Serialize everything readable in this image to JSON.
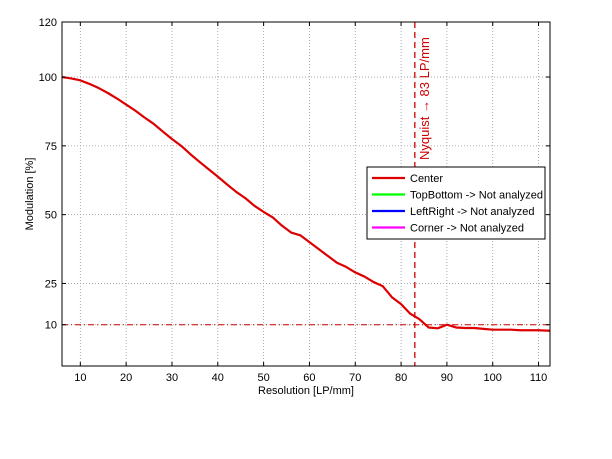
{
  "chart_data": {
    "type": "line",
    "xlabel": "Resolution [LP/mm]",
    "ylabel": "Modulation [%]",
    "xlim": [
      6,
      112.5
    ],
    "ylim": [
      -5,
      120
    ],
    "xticks": [
      10,
      20,
      30,
      40,
      50,
      60,
      70,
      80,
      90,
      100,
      110
    ],
    "yticks": [
      10,
      25,
      50,
      75,
      100,
      120
    ],
    "grid": true,
    "legend_position": "right-middle",
    "reference_lines": [
      {
        "orientation": "vertical",
        "x": 83,
        "color": "#cc0000",
        "style": "dashed",
        "label": "Nyquist → 83 LP/mm"
      },
      {
        "orientation": "horizontal",
        "y": 10,
        "color": "#cc0000",
        "style": "dash-dot"
      }
    ],
    "series": [
      {
        "name": "Center",
        "color": "#dd0000",
        "x": [
          6,
          8,
          10,
          12,
          14,
          16,
          18,
          20,
          22,
          24,
          26,
          28,
          30,
          32,
          34,
          36,
          38,
          40,
          42,
          44,
          46,
          48,
          50,
          52,
          54,
          56,
          58,
          60,
          62,
          64,
          66,
          68,
          70,
          72,
          74,
          76,
          78,
          80,
          82,
          84,
          86,
          88,
          90,
          92,
          94,
          96,
          98,
          100,
          102,
          104,
          106,
          108,
          110,
          112.5
        ],
        "y": [
          100,
          99.5,
          98.8,
          97.5,
          96,
          94.2,
          92.2,
          90,
          87.8,
          85.3,
          83,
          80.2,
          77.5,
          75,
          72,
          69.2,
          66.5,
          63.8,
          61,
          58.3,
          56,
          53.2,
          51,
          49,
          46,
          43.5,
          42.5,
          40,
          37.5,
          35,
          32.5,
          31,
          29,
          27.5,
          25.5,
          24,
          20,
          17.5,
          14,
          12,
          9,
          8.7,
          10,
          9,
          8.8,
          8.8,
          8.5,
          8.2,
          8.2,
          8.2,
          8,
          8,
          8,
          7.8
        ]
      },
      {
        "name": "TopBottom -> Not analyzed",
        "color": "#00ff00",
        "x": [],
        "y": []
      },
      {
        "name": "LeftRight -> Not analyzed",
        "color": "#0000ff",
        "x": [],
        "y": []
      },
      {
        "name": "Corner -> Not analyzed",
        "color": "#ff00ff",
        "x": [],
        "y": []
      }
    ]
  }
}
